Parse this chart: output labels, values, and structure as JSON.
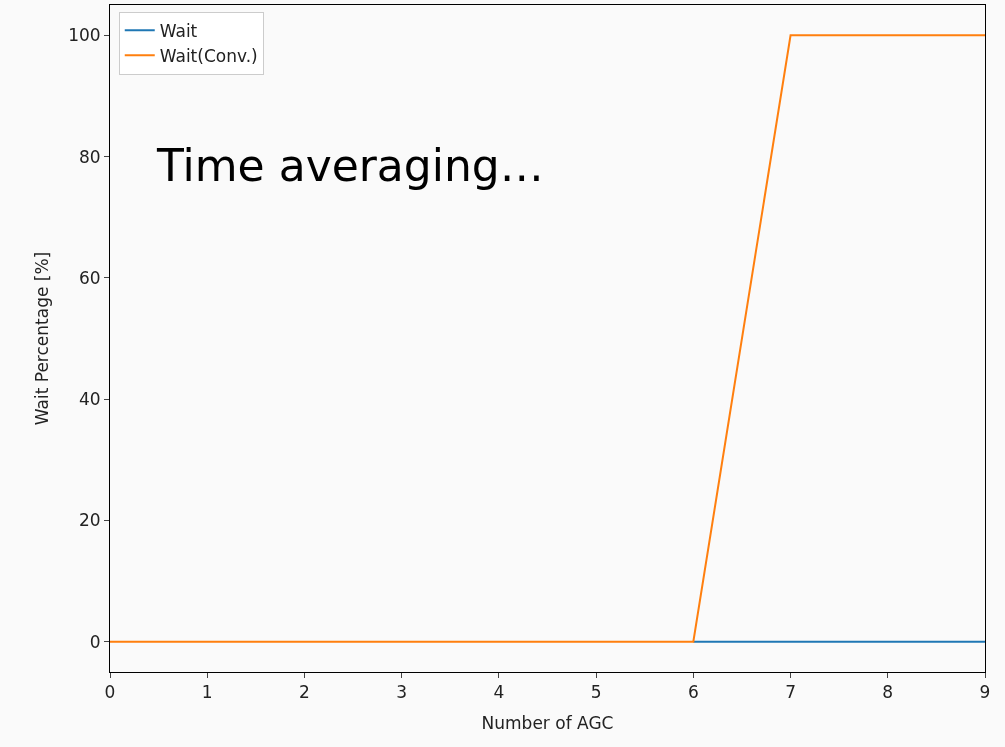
{
  "chart_data": {
    "type": "line",
    "xlabel": "Number of AGC",
    "ylabel": "Wait Percentage [%]",
    "x": [
      0,
      1,
      2,
      3,
      4,
      5,
      6,
      7,
      8,
      9
    ],
    "series": [
      {
        "name": "Wait",
        "color": "#1f77b4",
        "values": [
          null,
          null,
          null,
          null,
          null,
          null,
          0,
          0,
          0,
          0
        ]
      },
      {
        "name": "Wait(Conv.)",
        "color": "#ff7f0e",
        "values": [
          0,
          0,
          0,
          0,
          0,
          0,
          0,
          100,
          100,
          100
        ]
      }
    ],
    "xlim": [
      0,
      9
    ],
    "xticks": [
      0,
      1,
      2,
      3,
      4,
      5,
      6,
      7,
      8,
      9
    ],
    "ylim": [
      -5,
      105
    ],
    "yticks": [
      0,
      20,
      40,
      60,
      80,
      100
    ],
    "annotations": [
      "Time averaging…"
    ],
    "legend": "top left",
    "marker": "none",
    "line_style": "solid"
  }
}
